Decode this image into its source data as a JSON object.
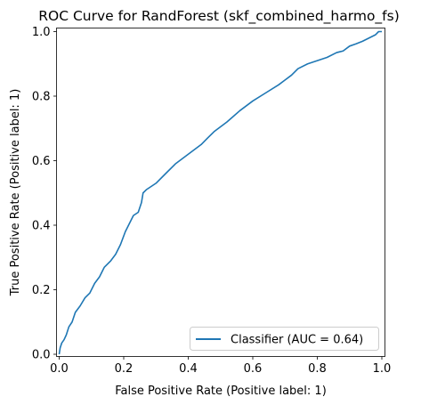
{
  "chart_data": {
    "type": "line",
    "title": "ROC Curve for RandForest (skf_combined_harmo_fs)",
    "xlabel": "False Positive Rate (Positive label: 1)",
    "ylabel": "True Positive Rate (Positive label: 1)",
    "xlim": [
      0,
      1
    ],
    "ylim": [
      0,
      1
    ],
    "xticks": [
      "0.0",
      "0.2",
      "0.4",
      "0.6",
      "0.8",
      "1.0"
    ],
    "yticks": [
      "0.0",
      "0.2",
      "0.4",
      "0.6",
      "0.8",
      "1.0"
    ],
    "grid": false,
    "legend_position": "lower right",
    "series": [
      {
        "name": "Classifier (AUC = 0.64)",
        "color": "#1f77b4",
        "x": [
          0.0,
          0.003,
          0.008,
          0.015,
          0.022,
          0.03,
          0.04,
          0.05,
          0.065,
          0.08,
          0.095,
          0.11,
          0.125,
          0.14,
          0.16,
          0.175,
          0.19,
          0.205,
          0.215,
          0.23,
          0.245,
          0.255,
          0.26,
          0.27,
          0.3,
          0.33,
          0.36,
          0.4,
          0.44,
          0.46,
          0.48,
          0.52,
          0.56,
          0.6,
          0.64,
          0.68,
          0.7,
          0.72,
          0.74,
          0.77,
          0.8,
          0.83,
          0.86,
          0.88,
          0.9,
          0.92,
          0.94,
          0.96,
          0.98,
          0.99,
          1.0
        ],
        "y": [
          0.0,
          0.02,
          0.035,
          0.045,
          0.06,
          0.085,
          0.1,
          0.13,
          0.15,
          0.175,
          0.19,
          0.22,
          0.24,
          0.27,
          0.29,
          0.31,
          0.34,
          0.38,
          0.4,
          0.43,
          0.44,
          0.47,
          0.5,
          0.51,
          0.53,
          0.56,
          0.59,
          0.62,
          0.65,
          0.67,
          0.69,
          0.72,
          0.755,
          0.785,
          0.81,
          0.835,
          0.85,
          0.865,
          0.885,
          0.9,
          0.91,
          0.92,
          0.935,
          0.94,
          0.955,
          0.962,
          0.97,
          0.98,
          0.99,
          1.0,
          1.0
        ]
      }
    ]
  }
}
